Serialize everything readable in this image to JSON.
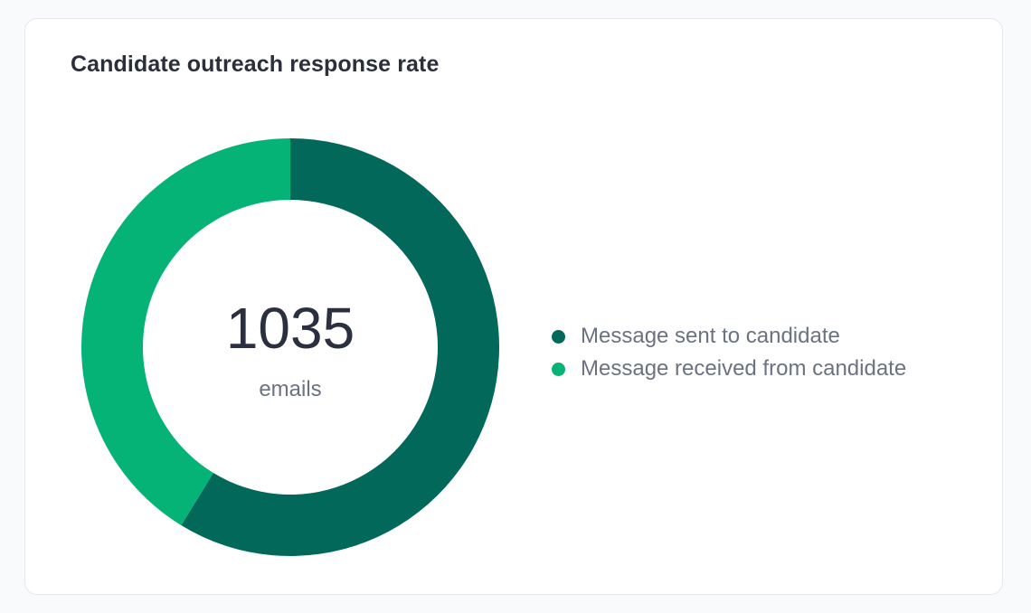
{
  "card": {
    "title": "Candidate outreach response rate"
  },
  "chart_data": {
    "type": "pie",
    "variant": "donut",
    "title": "Candidate outreach response rate",
    "center_value": "1035",
    "center_label": "emails",
    "total": 1035,
    "series": [
      {
        "name": "Message sent to candidate",
        "value": 608,
        "color": "#02695a"
      },
      {
        "name": "Message received from candidate",
        "value": 427,
        "color": "#05b377"
      }
    ],
    "legend_position": "right",
    "start_angle_deg": 0,
    "direction": "clockwise"
  }
}
